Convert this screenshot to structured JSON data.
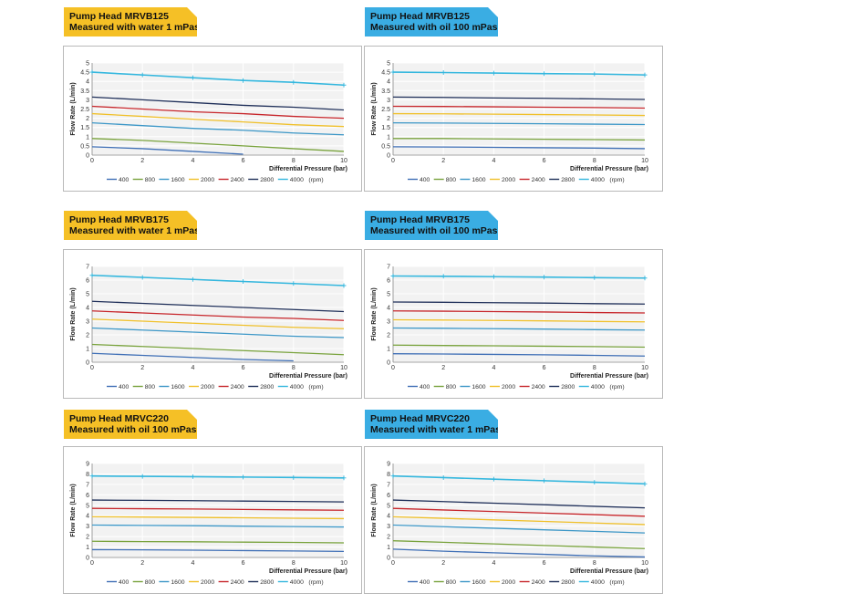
{
  "colors": {
    "400": "#3f6fb6",
    "800": "#79a33d",
    "1600": "#3c97c7",
    "2000": "#f0c02a",
    "2400": "#c7262b",
    "2800": "#1f2f59",
    "4000": "#34b7de",
    "yellow": "#f5c026",
    "blue": "#3aade3"
  },
  "legend": {
    "items": [
      "400",
      "800",
      "1600",
      "2000",
      "2400",
      "2800",
      "4000"
    ],
    "unit": "(rpm)"
  },
  "charts": [
    {
      "tag": {
        "line1": "Pump Head MRVB125",
        "line2": "Measured with water 1 mPas",
        "color": "yellow"
      },
      "ylabel": "Flow Rate (L/min)",
      "xlabel": "Differential Pressure (bar)",
      "yticks": [
        "0",
        "0.5",
        "1",
        "1.5",
        "2",
        "2.5",
        "3",
        "3.5",
        "4",
        "4.5",
        "5"
      ],
      "xticks": [
        "0",
        "2",
        "4",
        "6",
        "8",
        "10"
      ]
    },
    {
      "tag": {
        "line1": "Pump Head MRVB125",
        "line2": "Measured with oil 100 mPas",
        "color": "blue"
      },
      "ylabel": "Flow Rate (L/min)",
      "xlabel": "Differential Pressure (bar)",
      "yticks": [
        "0",
        "0.5",
        "1",
        "1.5",
        "2",
        "2.5",
        "3",
        "3.5",
        "4",
        "4.5",
        "5"
      ],
      "xticks": [
        "0",
        "2",
        "4",
        "6",
        "8",
        "10"
      ]
    },
    {
      "tag": {
        "line1": "Pump Head MRVB175",
        "line2": "Measured with water 1 mPas",
        "color": "yellow"
      },
      "ylabel": "Flow Rate (L/min)",
      "xlabel": "Differential Pressure (bar)",
      "yticks": [
        "0",
        "1",
        "2",
        "3",
        "4",
        "5",
        "6",
        "7"
      ],
      "xticks": [
        "0",
        "2",
        "4",
        "6",
        "8",
        "10"
      ]
    },
    {
      "tag": {
        "line1": "Pump Head MRVB175",
        "line2": "Measured with oil 100 mPas",
        "color": "blue"
      },
      "ylabel": "Flow Rate (L/min)",
      "xlabel": "Differential Pressure (bar)",
      "yticks": [
        "0",
        "1",
        "2",
        "3",
        "4",
        "5",
        "6",
        "7"
      ],
      "xticks": [
        "0",
        "2",
        "4",
        "6",
        "8",
        "10"
      ]
    },
    {
      "tag": {
        "line1": "Pump Head MRVC220",
        "line2": "Measured with oil 100 mPas",
        "color": "yellow"
      },
      "ylabel": "Flow Rate (L/min)",
      "xlabel": "Differential Pressure (bar)",
      "yticks": [
        "0",
        "1",
        "2",
        "3",
        "4",
        "5",
        "6",
        "7",
        "8",
        "9"
      ],
      "xticks": [
        "0",
        "2",
        "4",
        "6",
        "8",
        "10"
      ]
    },
    {
      "tag": {
        "line1": "Pump Head MRVC220",
        "line2": "Measured with water 1 mPas",
        "color": "blue"
      },
      "ylabel": "Flow Rate (L/min)",
      "xlabel": "Differential Pressure (bar)",
      "yticks": [
        "0",
        "1",
        "2",
        "3",
        "4",
        "5",
        "6",
        "7",
        "8",
        "9"
      ],
      "xticks": [
        "0",
        "2",
        "4",
        "6",
        "8",
        "10"
      ]
    }
  ],
  "chart_data": [
    {
      "type": "line",
      "xlabel": "Differential Pressure (bar)",
      "ylabel": "Flow Rate (L/min)",
      "xlim": [
        0,
        10
      ],
      "ylim": [
        0,
        5
      ],
      "grid": true,
      "legend": "bottom",
      "x": [
        0,
        2,
        4,
        6,
        8,
        10
      ],
      "series": [
        {
          "name": "400",
          "values": [
            0.45,
            0.35,
            0.2,
            0.05,
            null,
            null
          ]
        },
        {
          "name": "800",
          "values": [
            0.9,
            0.8,
            0.65,
            0.5,
            0.35,
            0.2
          ]
        },
        {
          "name": "1600",
          "values": [
            1.75,
            1.6,
            1.45,
            1.35,
            1.2,
            1.1
          ]
        },
        {
          "name": "2000",
          "values": [
            2.25,
            2.1,
            1.95,
            1.8,
            1.65,
            1.55
          ]
        },
        {
          "name": "2400",
          "values": [
            2.65,
            2.5,
            2.35,
            2.25,
            2.1,
            2.0
          ]
        },
        {
          "name": "2800",
          "values": [
            3.15,
            3.0,
            2.85,
            2.7,
            2.6,
            2.45
          ]
        },
        {
          "name": "4000",
          "values": [
            4.5,
            4.35,
            4.2,
            4.05,
            3.95,
            3.8
          ]
        }
      ]
    },
    {
      "type": "line",
      "xlabel": "Differential Pressure (bar)",
      "ylabel": "Flow Rate (L/min)",
      "xlim": [
        0,
        10
      ],
      "ylim": [
        0,
        5
      ],
      "grid": true,
      "legend": "bottom",
      "x": [
        0,
        2,
        4,
        6,
        8,
        10
      ],
      "series": [
        {
          "name": "400",
          "values": [
            0.45,
            0.44,
            0.42,
            0.4,
            0.38,
            0.35
          ]
        },
        {
          "name": "800",
          "values": [
            0.9,
            0.9,
            0.88,
            0.86,
            0.84,
            0.82
          ]
        },
        {
          "name": "1600",
          "values": [
            1.75,
            1.74,
            1.72,
            1.7,
            1.68,
            1.66
          ]
        },
        {
          "name": "2000",
          "values": [
            2.25,
            2.24,
            2.22,
            2.2,
            2.18,
            2.15
          ]
        },
        {
          "name": "2400",
          "values": [
            2.65,
            2.64,
            2.62,
            2.6,
            2.58,
            2.55
          ]
        },
        {
          "name": "2800",
          "values": [
            3.15,
            3.13,
            3.1,
            3.08,
            3.05,
            3.02
          ]
        },
        {
          "name": "4000",
          "values": [
            4.5,
            4.48,
            4.45,
            4.42,
            4.4,
            4.35
          ]
        }
      ]
    },
    {
      "type": "line",
      "xlabel": "Differential Pressure (bar)",
      "ylabel": "Flow Rate (L/min)",
      "xlim": [
        0,
        10
      ],
      "ylim": [
        0,
        7
      ],
      "grid": true,
      "legend": "bottom",
      "x": [
        0,
        2,
        4,
        6,
        8,
        10
      ],
      "series": [
        {
          "name": "400",
          "values": [
            0.65,
            0.5,
            0.35,
            0.2,
            0.1,
            null
          ]
        },
        {
          "name": "800",
          "values": [
            1.3,
            1.15,
            1.0,
            0.85,
            0.7,
            0.55
          ]
        },
        {
          "name": "1600",
          "values": [
            2.5,
            2.35,
            2.2,
            2.05,
            1.9,
            1.8
          ]
        },
        {
          "name": "2000",
          "values": [
            3.15,
            3.0,
            2.85,
            2.7,
            2.55,
            2.45
          ]
        },
        {
          "name": "2400",
          "values": [
            3.75,
            3.6,
            3.45,
            3.3,
            3.2,
            3.05
          ]
        },
        {
          "name": "2800",
          "values": [
            4.45,
            4.3,
            4.15,
            4.0,
            3.85,
            3.7
          ]
        },
        {
          "name": "4000",
          "values": [
            6.35,
            6.2,
            6.05,
            5.9,
            5.75,
            5.6
          ]
        }
      ]
    },
    {
      "type": "line",
      "xlabel": "Differential Pressure (bar)",
      "ylabel": "Flow Rate (L/min)",
      "xlim": [
        0,
        10
      ],
      "ylim": [
        0,
        7
      ],
      "grid": true,
      "legend": "bottom",
      "x": [
        0,
        2,
        4,
        6,
        8,
        10
      ],
      "series": [
        {
          "name": "400",
          "values": [
            0.62,
            0.6,
            0.57,
            0.54,
            0.5,
            0.45
          ]
        },
        {
          "name": "800",
          "values": [
            1.25,
            1.22,
            1.2,
            1.17,
            1.14,
            1.1
          ]
        },
        {
          "name": "1600",
          "values": [
            2.5,
            2.48,
            2.45,
            2.42,
            2.38,
            2.35
          ]
        },
        {
          "name": "2000",
          "values": [
            3.1,
            3.08,
            3.05,
            3.02,
            2.98,
            2.95
          ]
        },
        {
          "name": "2400",
          "values": [
            3.75,
            3.73,
            3.7,
            3.67,
            3.63,
            3.6
          ]
        },
        {
          "name": "2800",
          "values": [
            4.4,
            4.38,
            4.35,
            4.32,
            4.28,
            4.25
          ]
        },
        {
          "name": "4000",
          "values": [
            6.3,
            6.28,
            6.25,
            6.22,
            6.18,
            6.15
          ]
        }
      ]
    },
    {
      "type": "line",
      "xlabel": "Differential Pressure (bar)",
      "ylabel": "Flow Rate (L/min)",
      "xlim": [
        0,
        10
      ],
      "ylim": [
        0,
        9
      ],
      "grid": true,
      "legend": "bottom",
      "x": [
        0,
        2,
        4,
        6,
        8,
        10
      ],
      "series": [
        {
          "name": "400",
          "values": [
            0.75,
            0.73,
            0.7,
            0.66,
            0.62,
            0.58
          ]
        },
        {
          "name": "800",
          "values": [
            1.55,
            1.52,
            1.5,
            1.47,
            1.44,
            1.4
          ]
        },
        {
          "name": "1600",
          "values": [
            3.1,
            3.07,
            3.04,
            3.0,
            2.96,
            2.92
          ]
        },
        {
          "name": "2000",
          "values": [
            3.9,
            3.87,
            3.84,
            3.8,
            3.76,
            3.72
          ]
        },
        {
          "name": "2400",
          "values": [
            4.7,
            4.67,
            4.64,
            4.6,
            4.56,
            4.52
          ]
        },
        {
          "name": "2800",
          "values": [
            5.5,
            5.47,
            5.44,
            5.4,
            5.36,
            5.32
          ]
        },
        {
          "name": "4000",
          "values": [
            7.8,
            7.77,
            7.74,
            7.7,
            7.66,
            7.62
          ]
        }
      ]
    },
    {
      "type": "line",
      "xlabel": "Differential Pressure (bar)",
      "ylabel": "Flow Rate (L/min)",
      "xlim": [
        0,
        10
      ],
      "ylim": [
        0,
        9
      ],
      "grid": true,
      "legend": "bottom",
      "x": [
        0,
        2,
        4,
        6,
        8,
        10
      ],
      "series": [
        {
          "name": "400",
          "values": [
            0.8,
            0.6,
            0.45,
            0.3,
            0.15,
            0.05
          ]
        },
        {
          "name": "800",
          "values": [
            1.6,
            1.45,
            1.3,
            1.15,
            1.0,
            0.85
          ]
        },
        {
          "name": "1600",
          "values": [
            3.1,
            2.95,
            2.8,
            2.65,
            2.5,
            2.35
          ]
        },
        {
          "name": "2000",
          "values": [
            3.9,
            3.75,
            3.6,
            3.45,
            3.3,
            3.15
          ]
        },
        {
          "name": "2400",
          "values": [
            4.7,
            4.55,
            4.4,
            4.25,
            4.1,
            3.95
          ]
        },
        {
          "name": "2800",
          "values": [
            5.5,
            5.35,
            5.2,
            5.05,
            4.9,
            4.75
          ]
        },
        {
          "name": "4000",
          "values": [
            7.8,
            7.65,
            7.5,
            7.35,
            7.2,
            7.05
          ]
        }
      ]
    }
  ]
}
